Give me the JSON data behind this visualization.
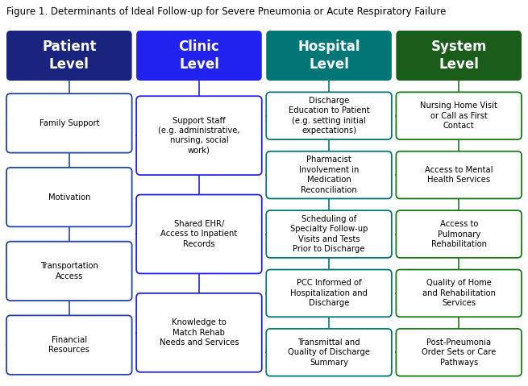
{
  "title": "Figure 1. Determinants of Ideal Follow-up for Severe Pneumonia or Acute Respiratory Failure",
  "title_fontsize": 8.5,
  "columns": [
    {
      "header": "Patient\nLevel",
      "header_color": "#1a237e",
      "border_color": "#2244aa",
      "items": [
        "Family Support",
        "Motivation",
        "Transportation\nAccess",
        "Financial\nResources"
      ]
    },
    {
      "header": "Clinic\nLevel",
      "header_color": "#2222ee",
      "border_color": "#2222ee",
      "items": [
        "Support Staff\n(e.g. administrative,\nnursing, social\nwork)",
        "Shared EHR/\nAccess to Inpatient\nRecords",
        "Knowledge to\nMatch Rehab\nNeeds and Services"
      ]
    },
    {
      "header": "Hospital\nLevel",
      "header_color": "#007777",
      "border_color": "#007777",
      "items": [
        "Discharge\nEducation to Patient\n(e.g. setting initial\nexpectations)",
        "Pharmacist\nInvolvement in\nMedication\nReconciliation",
        "Scheduling of\nSpecialty Follow-up\nVisits and Tests\nPrior to Discharge",
        "PCC Informed of\nHospitalization and\nDischarge",
        "Transmittal and\nQuality of Discharge\nSummary"
      ]
    },
    {
      "header": "System\nLevel",
      "header_color": "#1a5c1a",
      "border_color": "#1a7a1a",
      "items": [
        "Nursing Home Visit\nor Call as First\nContact",
        "Access to Mental\nHealth Services",
        "Access to\nPulmonary\nRehabilitation",
        "Quality of Home\nand Rehabilitation\nServices",
        "Post-Pneumonia\nOrder Sets or Care\nPathways"
      ]
    }
  ],
  "bg_color": "#ffffff",
  "text_color": "#000000",
  "header_text_color": "#ffffff",
  "fig_width": 6.55,
  "fig_height": 4.79,
  "dpi": 100
}
